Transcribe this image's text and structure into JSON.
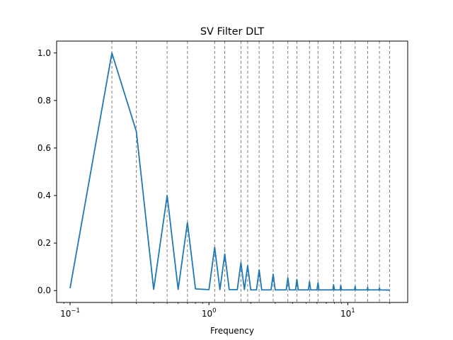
{
  "chart_data": {
    "type": "line",
    "title": "SV Filter DLT",
    "xlabel": "Frequency",
    "ylabel": "",
    "xscale": "log",
    "xlim": [
      0.08,
      27
    ],
    "ylim": [
      -0.05,
      1.05
    ],
    "grid": false,
    "legend": "none",
    "x_ticks": [
      {
        "value": 0.1,
        "base": "10",
        "exp": "−1"
      },
      {
        "value": 1,
        "base": "10",
        "exp": "0"
      },
      {
        "value": 10,
        "base": "10",
        "exp": "1"
      }
    ],
    "y_ticks": [
      {
        "value": 0.0,
        "label": "0.0"
      },
      {
        "value": 0.2,
        "label": "0.2"
      },
      {
        "value": 0.4,
        "label": "0.4"
      },
      {
        "value": 0.6,
        "label": "0.6"
      },
      {
        "value": 0.8,
        "label": "0.8"
      },
      {
        "value": 1.0,
        "label": "1.0"
      }
    ],
    "vlines": [
      0.2,
      0.3,
      0.5,
      0.7,
      1.1,
      1.3,
      1.7,
      1.9,
      2.3,
      2.9,
      3.7,
      4.3,
      5.3,
      6.1,
      7.9,
      8.9,
      11.3,
      13.9,
      16.9,
      20.0
    ],
    "series": [
      {
        "color": "#1f77b4",
        "x": [
          0.1,
          0.2,
          0.3,
          0.4,
          0.5,
          0.6,
          0.7,
          0.8,
          1.0,
          1.1,
          1.2,
          1.3,
          1.4,
          1.6,
          1.7,
          1.8,
          1.9,
          2.0,
          2.2,
          2.3,
          2.4,
          2.8,
          2.9,
          3.0,
          3.6,
          3.7,
          3.8,
          4.2,
          4.3,
          4.4,
          5.2,
          5.3,
          5.4,
          6.0,
          6.1,
          6.2,
          7.8,
          7.9,
          8.0,
          8.8,
          8.9,
          9.0,
          11.2,
          11.3,
          11.4,
          13.8,
          13.9,
          14.0,
          16.8,
          16.9,
          17.0,
          20.0
        ],
        "y": [
          0.01,
          1.0,
          0.67,
          0.005,
          0.4,
          0.005,
          0.286,
          0.007,
          0.004,
          0.182,
          0.004,
          0.154,
          0.004,
          0.004,
          0.118,
          0.004,
          0.105,
          0.003,
          0.003,
          0.087,
          0.003,
          0.003,
          0.069,
          0.003,
          0.003,
          0.054,
          0.003,
          0.003,
          0.047,
          0.003,
          0.003,
          0.038,
          0.003,
          0.003,
          0.033,
          0.003,
          0.003,
          0.025,
          0.003,
          0.003,
          0.022,
          0.003,
          0.003,
          0.018,
          0.003,
          0.003,
          0.014,
          0.003,
          0.003,
          0.012,
          0.003,
          0.002
        ]
      }
    ]
  }
}
